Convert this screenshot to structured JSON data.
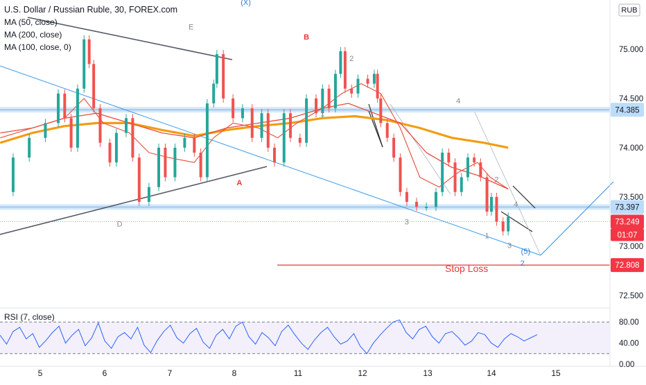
{
  "chart_data": [
    {
      "type": "line",
      "title": "U.S. Dollar / Russian Ruble, 30, FOREX.com",
      "currency": "RUB",
      "indicators": [
        "MA (50, close)",
        "MA (200, close)",
        "MA (100, close, 0)"
      ],
      "x_ticks": [
        "5",
        "6",
        "7",
        "8",
        "11",
        "12",
        "13",
        "14",
        "15"
      ],
      "y_ticks": [
        "75.000",
        "74.500",
        "74.000",
        "73.500",
        "73.000",
        "72.500"
      ],
      "ylim": [
        72.4,
        75.5
      ],
      "price_series": [
        {
          "x": 0,
          "y": 73.55
        },
        {
          "x": 0.2,
          "y": 73.9
        },
        {
          "x": 0.45,
          "y": 74.1
        },
        {
          "x": 0.7,
          "y": 74.25
        },
        {
          "x": 0.9,
          "y": 74.55
        },
        {
          "x": 1.0,
          "y": 74.3
        },
        {
          "x": 1.1,
          "y": 74.0
        },
        {
          "x": 1.2,
          "y": 74.6
        },
        {
          "x": 1.3,
          "y": 75.1
        },
        {
          "x": 1.38,
          "y": 74.85
        },
        {
          "x": 1.45,
          "y": 74.4
        },
        {
          "x": 1.55,
          "y": 74.05
        },
        {
          "x": 1.7,
          "y": 73.85
        },
        {
          "x": 1.8,
          "y": 74.15
        },
        {
          "x": 1.95,
          "y": 74.3
        },
        {
          "x": 2.05,
          "y": 73.9
        },
        {
          "x": 2.15,
          "y": 73.45
        },
        {
          "x": 2.3,
          "y": 73.6
        },
        {
          "x": 2.45,
          "y": 74.0
        },
        {
          "x": 2.55,
          "y": 73.7
        },
        {
          "x": 2.7,
          "y": 74.0
        },
        {
          "x": 2.85,
          "y": 74.1
        },
        {
          "x": 3.0,
          "y": 73.95
        },
        {
          "x": 3.1,
          "y": 73.7
        },
        {
          "x": 3.2,
          "y": 74.45
        },
        {
          "x": 3.3,
          "y": 74.65
        },
        {
          "x": 3.35,
          "y": 74.95
        },
        {
          "x": 3.45,
          "y": 74.5
        },
        {
          "x": 3.6,
          "y": 74.3
        },
        {
          "x": 3.75,
          "y": 74.4
        },
        {
          "x": 3.9,
          "y": 74.1
        },
        {
          "x": 4.05,
          "y": 74.35
        },
        {
          "x": 4.15,
          "y": 74.0
        },
        {
          "x": 4.25,
          "y": 73.85
        },
        {
          "x": 4.4,
          "y": 74.35
        },
        {
          "x": 4.5,
          "y": 74.1
        },
        {
          "x": 4.65,
          "y": 74.05
        },
        {
          "x": 4.75,
          "y": 74.5
        },
        {
          "x": 4.9,
          "y": 74.35
        },
        {
          "x": 5.0,
          "y": 74.6
        },
        {
          "x": 5.1,
          "y": 74.4
        },
        {
          "x": 5.2,
          "y": 74.75
        },
        {
          "x": 5.28,
          "y": 74.98
        },
        {
          "x": 5.35,
          "y": 74.6
        },
        {
          "x": 5.45,
          "y": 74.55
        },
        {
          "x": 5.55,
          "y": 74.7
        },
        {
          "x": 5.7,
          "y": 74.65
        },
        {
          "x": 5.8,
          "y": 74.75
        },
        {
          "x": 5.85,
          "y": 74.5
        },
        {
          "x": 5.9,
          "y": 74.25
        },
        {
          "x": 6.0,
          "y": 74.1
        },
        {
          "x": 6.1,
          "y": 73.9
        },
        {
          "x": 6.2,
          "y": 73.55
        },
        {
          "x": 6.3,
          "y": 73.45
        },
        {
          "x": 6.45,
          "y": 73.4
        },
        {
          "x": 6.6,
          "y": 73.4
        },
        {
          "x": 6.75,
          "y": 73.55
        },
        {
          "x": 6.85,
          "y": 73.95
        },
        {
          "x": 6.95,
          "y": 73.85
        },
        {
          "x": 7.05,
          "y": 73.55
        },
        {
          "x": 7.15,
          "y": 73.7
        },
        {
          "x": 7.25,
          "y": 73.9
        },
        {
          "x": 7.35,
          "y": 73.85
        },
        {
          "x": 7.45,
          "y": 73.7
        },
        {
          "x": 7.55,
          "y": 73.35
        },
        {
          "x": 7.62,
          "y": 73.5
        },
        {
          "x": 7.7,
          "y": 73.25
        },
        {
          "x": 7.8,
          "y": 73.15
        },
        {
          "x": 7.88,
          "y": 73.3
        }
      ],
      "ma_50": [
        {
          "x": 0,
          "y": 74.1
        },
        {
          "x": 0.5,
          "y": 74.2
        },
        {
          "x": 1.0,
          "y": 74.3
        },
        {
          "x": 1.3,
          "y": 74.5
        },
        {
          "x": 1.6,
          "y": 74.25
        },
        {
          "x": 2.0,
          "y": 74.15
        },
        {
          "x": 2.3,
          "y": 73.95
        },
        {
          "x": 2.6,
          "y": 73.9
        },
        {
          "x": 3.0,
          "y": 73.85
        },
        {
          "x": 3.3,
          "y": 74.1
        },
        {
          "x": 3.6,
          "y": 74.25
        },
        {
          "x": 4.0,
          "y": 74.2
        },
        {
          "x": 4.3,
          "y": 74.1
        },
        {
          "x": 4.6,
          "y": 74.25
        },
        {
          "x": 5.0,
          "y": 74.4
        },
        {
          "x": 5.3,
          "y": 74.55
        },
        {
          "x": 5.6,
          "y": 74.65
        },
        {
          "x": 5.9,
          "y": 74.55
        },
        {
          "x": 6.2,
          "y": 74.2
        },
        {
          "x": 6.5,
          "y": 73.7
        },
        {
          "x": 6.8,
          "y": 73.6
        },
        {
          "x": 7.1,
          "y": 73.75
        },
        {
          "x": 7.4,
          "y": 73.85
        },
        {
          "x": 7.6,
          "y": 73.7
        },
        {
          "x": 7.88,
          "y": 73.58
        }
      ],
      "ma_100": [
        {
          "x": 0,
          "y": 74.15
        },
        {
          "x": 0.5,
          "y": 74.2
        },
        {
          "x": 1.0,
          "y": 74.3
        },
        {
          "x": 1.5,
          "y": 74.35
        },
        {
          "x": 2.0,
          "y": 74.25
        },
        {
          "x": 2.5,
          "y": 74.15
        },
        {
          "x": 3.0,
          "y": 74.1
        },
        {
          "x": 3.5,
          "y": 74.2
        },
        {
          "x": 4.0,
          "y": 74.25
        },
        {
          "x": 4.5,
          "y": 74.3
        },
        {
          "x": 5.0,
          "y": 74.4
        },
        {
          "x": 5.4,
          "y": 74.45
        },
        {
          "x": 5.8,
          "y": 74.35
        },
        {
          "x": 6.2,
          "y": 74.25
        },
        {
          "x": 6.6,
          "y": 73.95
        },
        {
          "x": 7.0,
          "y": 73.8
        },
        {
          "x": 7.4,
          "y": 73.72
        },
        {
          "x": 7.88,
          "y": 73.58
        }
      ],
      "ma_200": [
        {
          "x": 0,
          "y": 74.05
        },
        {
          "x": 0.5,
          "y": 74.15
        },
        {
          "x": 1.0,
          "y": 74.22
        },
        {
          "x": 1.5,
          "y": 74.25
        },
        {
          "x": 2.0,
          "y": 74.25
        },
        {
          "x": 2.5,
          "y": 74.18
        },
        {
          "x": 3.0,
          "y": 74.12
        },
        {
          "x": 3.5,
          "y": 74.18
        },
        {
          "x": 4.0,
          "y": 74.22
        },
        {
          "x": 4.5,
          "y": 74.25
        },
        {
          "x": 5.0,
          "y": 74.3
        },
        {
          "x": 5.5,
          "y": 74.32
        },
        {
          "x": 6.0,
          "y": 74.28
        },
        {
          "x": 6.5,
          "y": 74.2
        },
        {
          "x": 7.0,
          "y": 74.1
        },
        {
          "x": 7.5,
          "y": 74.05
        },
        {
          "x": 7.88,
          "y": 74.0
        }
      ],
      "horizontal_levels": [
        {
          "value": 74.385,
          "label": "74.385",
          "color": "#9ec9f2",
          "label_bg": "#bcdcfa",
          "label_color": "#131722"
        },
        {
          "value": 73.397,
          "label": "73.397",
          "color": "#9ec9f2",
          "label_bg": "#bcdcfa",
          "label_color": "#131722"
        },
        {
          "value": 73.249,
          "label": "73.249",
          "color": "#f28b82",
          "label_bg": "#f23645",
          "label_color": "#ffffff"
        },
        {
          "value": 72.808,
          "label": "72.808",
          "color": "#e53935",
          "label_bg": "#f23645",
          "label_color": "#ffffff"
        }
      ],
      "countdown": "01:07",
      "annotations": [
        {
          "text": "(X)",
          "x": 3.8,
          "y": 75.45,
          "color": "#2a7fd4"
        },
        {
          "text": "E",
          "x": 2.95,
          "y": 75.2,
          "color": "#888888"
        },
        {
          "text": "B",
          "x": 4.75,
          "y": 75.1,
          "color": "#e53935"
        },
        {
          "text": "2",
          "x": 5.45,
          "y": 74.88,
          "color": "#888888"
        },
        {
          "text": "1",
          "x": 5.0,
          "y": 74.32,
          "color": "#888888"
        },
        {
          "text": "4",
          "x": 7.1,
          "y": 74.45,
          "color": "#888888"
        },
        {
          "text": "A",
          "x": 3.7,
          "y": 73.62,
          "color": "#e53935"
        },
        {
          "text": "D",
          "x": 1.85,
          "y": 73.2,
          "color": "#888888"
        },
        {
          "text": "3",
          "x": 6.3,
          "y": 73.22,
          "color": "#888888"
        },
        {
          "text": "2",
          "x": 7.7,
          "y": 73.65,
          "color": "#888888"
        },
        {
          "text": "4",
          "x": 8.0,
          "y": 73.4,
          "color": "#888888"
        },
        {
          "text": "1",
          "x": 7.55,
          "y": 73.08,
          "color": "#888888"
        },
        {
          "text": "3",
          "x": 7.9,
          "y": 72.98,
          "color": "#888888"
        },
        {
          "text": "(5)",
          "x": 8.15,
          "y": 72.92,
          "color": "#2a7fd4"
        },
        {
          "text": "2",
          "x": 8.1,
          "y": 72.8,
          "color": "#2a7fd4"
        }
      ],
      "stop_loss_label": "Stop Loss"
    },
    {
      "type": "line",
      "title": "RSI (7, close)",
      "y_ticks": [
        "80.00",
        "40.00",
        "0.00"
      ],
      "ylim": [
        0,
        100
      ],
      "levels": [
        80,
        20
      ],
      "values": [
        55,
        38,
        62,
        70,
        48,
        58,
        32,
        45,
        60,
        72,
        40,
        55,
        66,
        35,
        50,
        78,
        44,
        30,
        52,
        60,
        48,
        70,
        36,
        22,
        45,
        62,
        74,
        50,
        40,
        58,
        68,
        42,
        30,
        55,
        66,
        48,
        72,
        80,
        52,
        38,
        60,
        50,
        35,
        62,
        74,
        56,
        40,
        28,
        46,
        60,
        70,
        52,
        38,
        44,
        58,
        34,
        20,
        40,
        55,
        68,
        80,
        84,
        60,
        48,
        66,
        72,
        52,
        40,
        58,
        62,
        50,
        36,
        44,
        60,
        56,
        40,
        32,
        48,
        58,
        52,
        44,
        50,
        56
      ]
    }
  ]
}
